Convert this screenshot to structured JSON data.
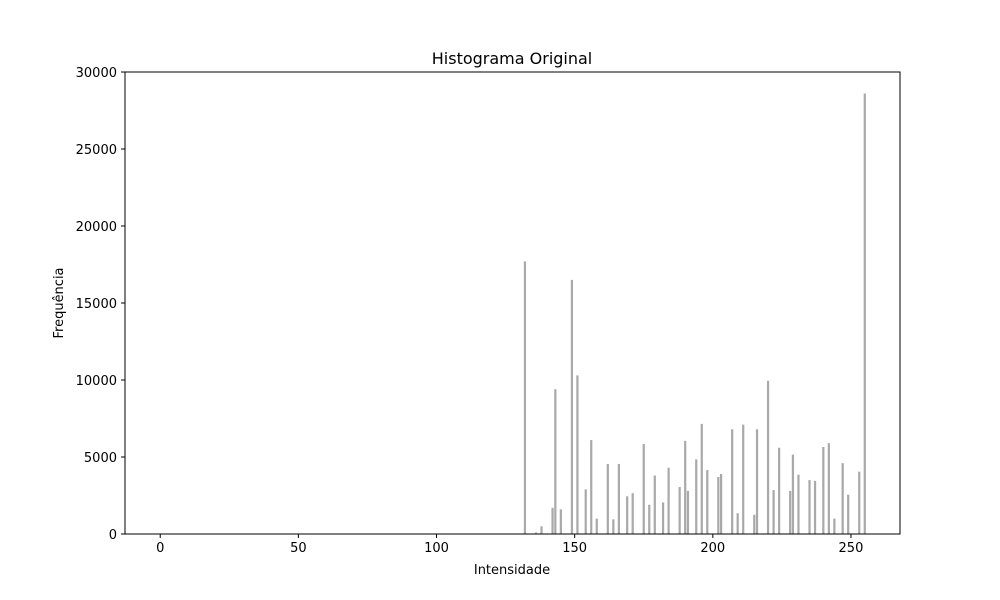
{
  "chart_data": {
    "type": "bar",
    "title": "Histograma Original",
    "xlabel": "Intensidade",
    "ylabel": "Frequência",
    "xlim": [
      -12.75,
      267.75
    ],
    "ylim": [
      0,
      30000
    ],
    "xticks": [
      0,
      50,
      100,
      150,
      200,
      250
    ],
    "yticks": [
      0,
      5000,
      10000,
      15000,
      20000,
      25000,
      30000
    ],
    "grid": false,
    "bar_color": "#a9a9a9",
    "bar_width": 0.8,
    "x": [
      132,
      136,
      138,
      142,
      143,
      145,
      149,
      151,
      154,
      156,
      158,
      162,
      164,
      166,
      169,
      171,
      175,
      177,
      179,
      182,
      184,
      188,
      190,
      191,
      194,
      196,
      198,
      202,
      203,
      207,
      209,
      211,
      215,
      216,
      220,
      222,
      224,
      228,
      229,
      231,
      235,
      237,
      240,
      242,
      244,
      247,
      249,
      253,
      255
    ],
    "values": [
      17700,
      100,
      500,
      1700,
      9400,
      1600,
      16500,
      10300,
      2900,
      6100,
      1000,
      4550,
      950,
      4550,
      2450,
      2650,
      5850,
      1900,
      3800,
      2050,
      4300,
      3050,
      6050,
      2800,
      4850,
      7150,
      4150,
      3700,
      3900,
      6800,
      1350,
      7100,
      1250,
      6800,
      9950,
      2850,
      5600,
      2800,
      5150,
      3850,
      3500,
      3450,
      5650,
      5900,
      1000,
      4600,
      2550,
      4050,
      28600
    ]
  }
}
